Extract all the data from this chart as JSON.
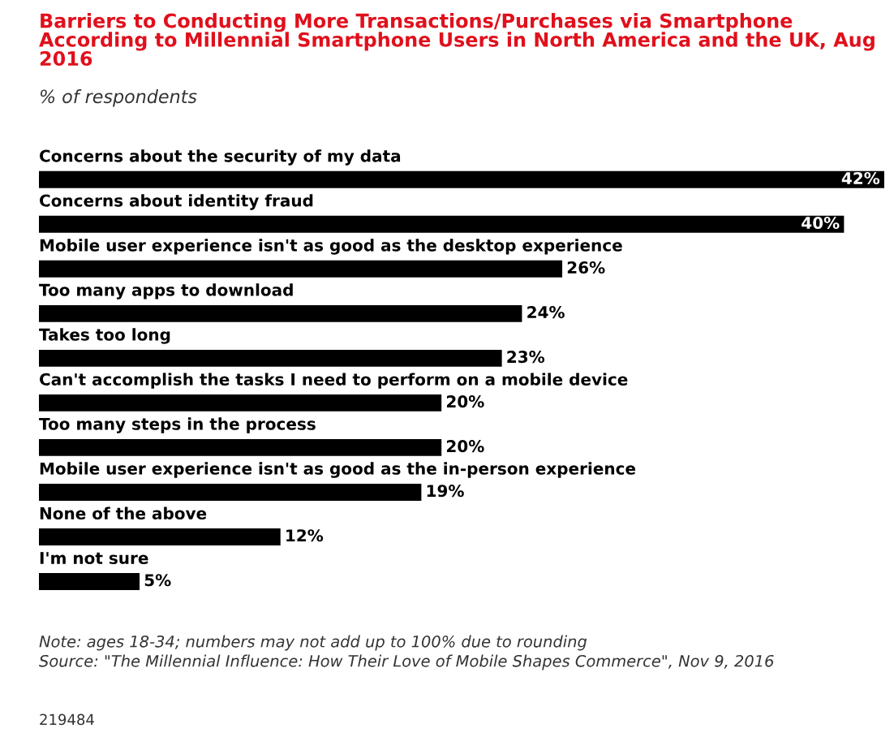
{
  "chart_data": {
    "type": "bar",
    "orientation": "horizontal",
    "title": "Barriers to Conducting More Transactions/Purchases via Smartphone According to Millennial Smartphone Users in North America and the UK, Aug 2016",
    "subtitle": "% of respondents",
    "categories": [
      "Concerns about the security of my data",
      "Concerns about identity fraud",
      "Mobile user experience isn't as good as the desktop experience",
      "Too many apps to download",
      "Takes too long",
      "Can't accomplish the tasks I need to perform on a mobile device",
      "Too many steps in the process",
      "Mobile user experience isn't as good as the in-person experience",
      "None of the above",
      "I'm not sure"
    ],
    "values": [
      42,
      40,
      26,
      24,
      23,
      20,
      20,
      19,
      12,
      5
    ],
    "value_labels": [
      "42%",
      "40%",
      "26%",
      "24%",
      "23%",
      "20%",
      "20%",
      "19%",
      "12%",
      "5%"
    ],
    "color": "#000000",
    "annotations": [
      "Note: ages 18-34; numbers may not add up to 100% due to rounding",
      "Source: \"The Millennial Influence: How Their Love of Mobile Shapes Commerce\", Nov 9, 2016",
      "219484"
    ]
  }
}
